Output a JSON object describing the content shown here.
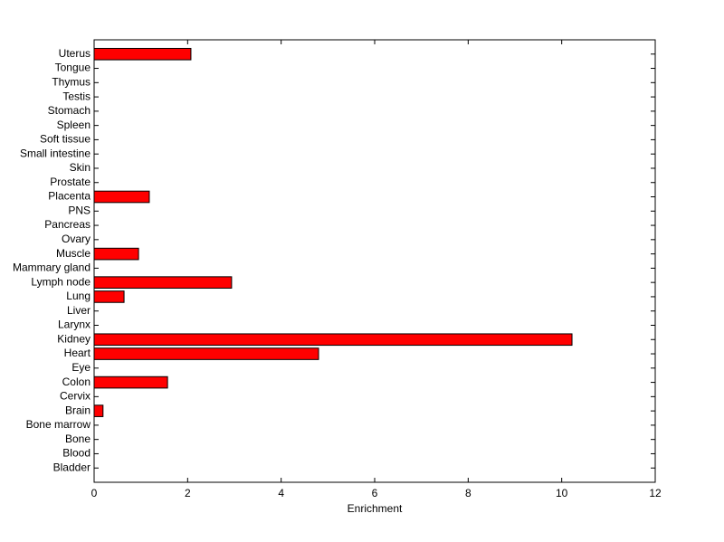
{
  "chart_data": {
    "type": "barh",
    "xlabel": "Enrichment",
    "categories": [
      "Bladder",
      "Blood",
      "Bone",
      "Bone marrow",
      "Brain",
      "Cervix",
      "Colon",
      "Eye",
      "Heart",
      "Kidney",
      "Larynx",
      "Liver",
      "Lung",
      "Lymph node",
      "Mammary gland",
      "Muscle",
      "Ovary",
      "Pancreas",
      "PNS",
      "Placenta",
      "Prostate",
      "Skin",
      "Small intestine",
      "Soft tissue",
      "Spleen",
      "Stomach",
      "Testis",
      "Thymus",
      "Tongue",
      "Uterus"
    ],
    "values": [
      0,
      0,
      0,
      0,
      0.19,
      0,
      1.57,
      0,
      4.8,
      10.22,
      0,
      0,
      0.64,
      2.94,
      0,
      0.95,
      0,
      0,
      0,
      1.18,
      0,
      0,
      0,
      0,
      0,
      0,
      0,
      0,
      0,
      2.07
    ],
    "color": "#ff0000",
    "xlim": [
      0,
      12
    ],
    "xticks": [
      0,
      2,
      4,
      6,
      8,
      10,
      12
    ],
    "grid": false
  }
}
